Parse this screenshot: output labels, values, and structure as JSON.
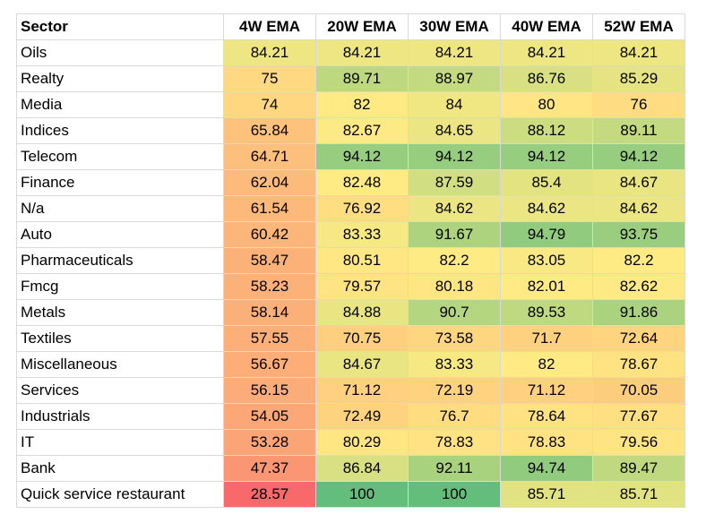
{
  "headers": [
    "Sector",
    "4W EMA",
    "20W EMA",
    "30W EMA",
    "40W EMA",
    "52W EMA"
  ],
  "rows": [
    {
      "sector": "Oils",
      "values": [
        "84.21",
        "84.21",
        "84.21",
        "84.21",
        "84.21"
      ]
    },
    {
      "sector": "Realty",
      "values": [
        "75",
        "89.71",
        "88.97",
        "86.76",
        "85.29"
      ]
    },
    {
      "sector": "Media",
      "values": [
        "74",
        "82",
        "84",
        "80",
        "76"
      ]
    },
    {
      "sector": "Indices",
      "values": [
        "65.84",
        "82.67",
        "84.65",
        "88.12",
        "89.11"
      ]
    },
    {
      "sector": "Telecom",
      "values": [
        "64.71",
        "94.12",
        "94.12",
        "94.12",
        "94.12"
      ]
    },
    {
      "sector": "Finance",
      "values": [
        "62.04",
        "82.48",
        "87.59",
        "85.4",
        "84.67"
      ]
    },
    {
      "sector": "N/a",
      "values": [
        "61.54",
        "76.92",
        "84.62",
        "84.62",
        "84.62"
      ]
    },
    {
      "sector": "Auto",
      "values": [
        "60.42",
        "83.33",
        "91.67",
        "94.79",
        "93.75"
      ]
    },
    {
      "sector": "Pharmaceuticals",
      "values": [
        "58.47",
        "80.51",
        "82.2",
        "83.05",
        "82.2"
      ]
    },
    {
      "sector": "Fmcg",
      "values": [
        "58.23",
        "79.57",
        "80.18",
        "82.01",
        "82.62"
      ]
    },
    {
      "sector": "Metals",
      "values": [
        "58.14",
        "84.88",
        "90.7",
        "89.53",
        "91.86"
      ]
    },
    {
      "sector": "Textiles",
      "values": [
        "57.55",
        "70.75",
        "73.58",
        "71.7",
        "72.64"
      ]
    },
    {
      "sector": "Miscellaneous",
      "values": [
        "56.67",
        "84.67",
        "83.33",
        "82",
        "78.67"
      ]
    },
    {
      "sector": "Services",
      "values": [
        "56.15",
        "71.12",
        "72.19",
        "71.12",
        "70.05"
      ]
    },
    {
      "sector": "Industrials",
      "values": [
        "54.05",
        "72.49",
        "76.7",
        "78.64",
        "77.67"
      ]
    },
    {
      "sector": "IT",
      "values": [
        "53.28",
        "80.29",
        "78.83",
        "78.83",
        "79.56"
      ]
    },
    {
      "sector": "Bank",
      "values": [
        "47.37",
        "86.84",
        "92.11",
        "94.74",
        "89.47"
      ]
    },
    {
      "sector": "Quick service restaurant",
      "values": [
        "28.57",
        "100",
        "100",
        "85.71",
        "85.71"
      ]
    }
  ],
  "colors": {
    "low": "#f8696b",
    "mid": "#ffeb84",
    "high": "#63be7b",
    "gridline": "#d9d9d9"
  }
}
